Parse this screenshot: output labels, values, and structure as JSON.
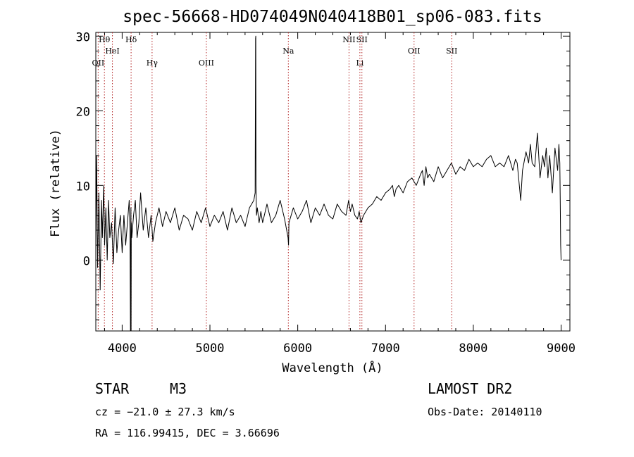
{
  "chart_data": {
    "type": "line",
    "title": "spec-56668-HD074049N040418B01_sp06-083.fits",
    "xlabel": "Wavelength (Å)",
    "ylabel": "Flux (relative)",
    "xlim": [
      3700,
      9100
    ],
    "ylim": [
      -9.5,
      30.5
    ],
    "xticks": [
      4000,
      5000,
      6000,
      7000,
      8000,
      9000
    ],
    "yticks": [
      0,
      10,
      20,
      30
    ],
    "grid": false,
    "series": [
      {
        "x": [
          3700,
          3710,
          3720,
          3735,
          3750,
          3765,
          3775,
          3790,
          3800,
          3815,
          3830,
          3845,
          3860,
          3880,
          3900,
          3920,
          3940,
          3960,
          3980,
          4000,
          4020,
          4040,
          4060,
          4080,
          4090,
          4095,
          4100,
          4102,
          4104,
          4110,
          4130,
          4150,
          4170,
          4190,
          4210,
          4240,
          4270,
          4300,
          4330,
          4350,
          4380,
          4420,
          4460,
          4500,
          4550,
          4600,
          4650,
          4700,
          4750,
          4800,
          4850,
          4900,
          4950,
          5000,
          5050,
          5100,
          5150,
          5200,
          5250,
          5300,
          5350,
          5400,
          5450,
          5500,
          5515,
          5520,
          5522,
          5525,
          5530,
          5540,
          5560,
          5580,
          5600,
          5650,
          5700,
          5750,
          5800,
          5850,
          5890,
          5895,
          5900,
          5950,
          6000,
          6050,
          6100,
          6150,
          6200,
          6250,
          6300,
          6350,
          6400,
          6450,
          6500,
          6550,
          6580,
          6600,
          6620,
          6650,
          6680,
          6700,
          6720,
          6750,
          6800,
          6850,
          6900,
          6950,
          7000,
          7050,
          7080,
          7100,
          7120,
          7150,
          7200,
          7250,
          7300,
          7350,
          7400,
          7420,
          7440,
          7460,
          7480,
          7500,
          7550,
          7600,
          7650,
          7700,
          7750,
          7800,
          7850,
          7900,
          7950,
          8000,
          8050,
          8100,
          8150,
          8200,
          8250,
          8300,
          8350,
          8400,
          8450,
          8480,
          8500,
          8520,
          8540,
          8560,
          8600,
          8630,
          8650,
          8670,
          8700,
          8730,
          8760,
          8790,
          8810,
          8830,
          8850,
          8870,
          8900,
          8930,
          8960,
          8975,
          8985,
          8990,
          8995,
          9000
        ],
        "y": [
          1.5,
          14,
          -1,
          9,
          -4,
          8,
          3,
          10,
          2,
          7,
          0,
          8,
          3,
          5,
          -0.5,
          7,
          1,
          4,
          6,
          1,
          6,
          2,
          5,
          8,
          4,
          -9.5,
          7,
          -9.5,
          5,
          3,
          6,
          8,
          3,
          5,
          9,
          4,
          7,
          3,
          6,
          2.5,
          5,
          7,
          4.5,
          6.5,
          5,
          7,
          4,
          6,
          5.5,
          4,
          6.5,
          5,
          7,
          4.5,
          6,
          5,
          6.5,
          4,
          7,
          5,
          6,
          4.5,
          7,
          8,
          9,
          29.7,
          30,
          10,
          6,
          7,
          5,
          6.5,
          5,
          7.5,
          5,
          6,
          8,
          5.5,
          3,
          2,
          5,
          7,
          5.5,
          6.5,
          8,
          5,
          7,
          6,
          7.5,
          6,
          5.5,
          7.5,
          6.5,
          6,
          8,
          6.5,
          7.5,
          6,
          5.5,
          6.5,
          5,
          6,
          7,
          7.5,
          8.5,
          8,
          9,
          9.5,
          10,
          8.5,
          9.5,
          10,
          9,
          10.5,
          11,
          10,
          11.5,
          12,
          10,
          12.5,
          11,
          11.5,
          10.5,
          12.5,
          11,
          12,
          13,
          11.5,
          12.5,
          12,
          13.5,
          12.5,
          13,
          12.5,
          13.5,
          14,
          12.5,
          13,
          12.5,
          14,
          12,
          13.5,
          13,
          10.5,
          8,
          12,
          14.5,
          13,
          15.5,
          13,
          12.5,
          17,
          11,
          14,
          12.5,
          15,
          11,
          14,
          9,
          15,
          12,
          15.5,
          13,
          8,
          2,
          0
        ]
      }
    ],
    "lines": [
      {
        "label": "Hθ",
        "x": 3798
      },
      {
        "label": "OII",
        "x": 3727
      },
      {
        "label": "HeI",
        "x": 3889
      },
      {
        "label": "Hδ",
        "x": 4102
      },
      {
        "label": "Hγ",
        "x": 4341
      },
      {
        "label": "OIII",
        "x": 4959
      },
      {
        "label": "Na",
        "x": 5893
      },
      {
        "label": "NII",
        "x": 6584
      },
      {
        "label": "Li",
        "x": 6708
      },
      {
        "label": "SII",
        "x": 6731
      },
      {
        "label": "OII",
        "x": 7325
      },
      {
        "label": "SII",
        "x": 7754
      }
    ]
  },
  "info": {
    "object_type": "STAR",
    "subclass": "M3",
    "survey": "LAMOST DR2",
    "cz": "cz = −21.0 ± 27.3 km/s",
    "obs_date": "Obs-Date: 20140110",
    "radec": "RA = 116.99415, DEC =    3.66696"
  }
}
